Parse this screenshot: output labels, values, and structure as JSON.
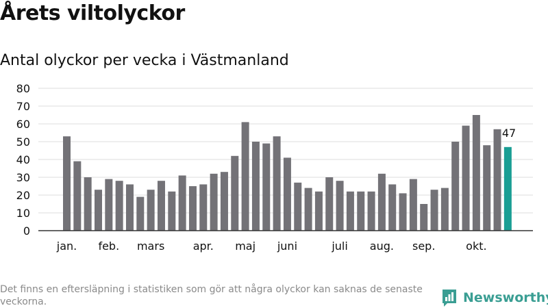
{
  "title": "Årets viltolyckor",
  "footnote": "Det finns en eftersläpning i statistiken som gör att några olyckor kan saknas de senaste veckorna.",
  "brand": {
    "name": "Newsworthy",
    "icon": "newsworthy-logo-icon",
    "color": "#3a9e93"
  },
  "chart_data": {
    "type": "bar",
    "title": "Antal olyckor per vecka i Västmanland",
    "xlabel": "",
    "ylabel": "",
    "ylim": [
      0,
      80
    ],
    "yticks": [
      0,
      10,
      20,
      30,
      40,
      50,
      60,
      70,
      80
    ],
    "grid": true,
    "values": [
      53,
      39,
      30,
      23,
      29,
      28,
      26,
      19,
      23,
      28,
      22,
      31,
      25,
      26,
      32,
      33,
      42,
      61,
      50,
      49,
      53,
      41,
      27,
      24,
      22,
      30,
      28,
      22,
      22,
      22,
      32,
      26,
      21,
      29,
      15,
      23,
      24,
      50,
      59,
      65,
      48,
      57,
      47
    ],
    "month_labels": [
      {
        "label": "jan.",
        "week_index": 0
      },
      {
        "label": "feb.",
        "week_index": 4
      },
      {
        "label": "mars",
        "week_index": 8
      },
      {
        "label": "apr.",
        "week_index": 13
      },
      {
        "label": "maj",
        "week_index": 17
      },
      {
        "label": "juni",
        "week_index": 21
      },
      {
        "label": "juli",
        "week_index": 26
      },
      {
        "label": "aug.",
        "week_index": 30
      },
      {
        "label": "sep.",
        "week_index": 34
      },
      {
        "label": "okt.",
        "week_index": 39
      }
    ],
    "highlight": {
      "week_index": 42,
      "label": "47"
    },
    "colors": {
      "bar": "#737277",
      "highlight": "#1a9e94",
      "grid": "#dedede",
      "axis": "#333333"
    }
  }
}
